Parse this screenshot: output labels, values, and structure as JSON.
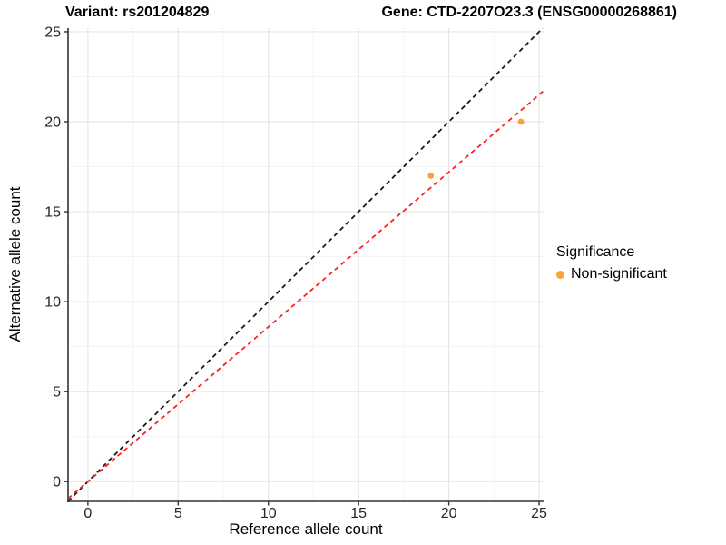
{
  "titles": {
    "left": "Variant: rs201204829",
    "right": "Gene: CTD-2207O23.3 (ENSG00000268861)"
  },
  "axes": {
    "x_label": "Reference allele count",
    "y_label": "Alternative allele count"
  },
  "legend": {
    "title": "Significance",
    "items": [
      {
        "label": "Non-significant",
        "color": "#F9A13C"
      }
    ]
  },
  "chart_data": {
    "type": "scatter",
    "titles": {
      "left": "Variant: rs201204829",
      "right": "Gene: CTD-2207O23.3 (ENSG00000268861)"
    },
    "xlabel": "Reference allele count",
    "ylabel": "Alternative allele count",
    "x_ticks": [
      0,
      5,
      10,
      15,
      20,
      25
    ],
    "y_ticks": [
      0,
      5,
      10,
      15,
      20,
      25
    ],
    "x_minor_ticks": [
      2.5,
      7.5,
      12.5,
      17.5,
      22.5
    ],
    "y_minor_ticks": [
      2.5,
      7.5,
      12.5,
      17.5,
      22.5
    ],
    "x_range": [
      -1.1,
      25.3
    ],
    "y_range": [
      -1.1,
      25.2
    ],
    "grid": {
      "major": true,
      "minor": true
    },
    "legend_position": "right",
    "series": [
      {
        "name": "Non-significant",
        "color": "#F9A13C",
        "points": [
          {
            "x": 19,
            "y": 17
          },
          {
            "x": 24,
            "y": 20
          }
        ]
      }
    ],
    "reference_lines": [
      {
        "name": "identity",
        "slope": 1.0,
        "intercept": 0,
        "color": "#1A1A1A",
        "style": "dashed"
      },
      {
        "name": "expected-allelic-ratio",
        "slope": 0.86,
        "intercept": 0,
        "color": "#FF1F1F",
        "style": "dashed"
      }
    ]
  },
  "style_colors": {
    "grid_major": "#E6E6E6",
    "grid_minor": "#F3F3F3",
    "axis_line": "#333333",
    "tick_mark": "#333333"
  }
}
